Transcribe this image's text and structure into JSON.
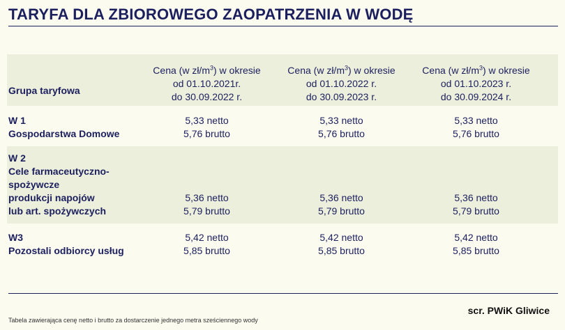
{
  "title": "TARYFA DLA ZBIOROWEGO ZAOPATRZENIA W WODĘ",
  "header": {
    "group_label": "Grupa taryfowa",
    "periods": [
      {
        "line1_pre": "Cena (w zł/m",
        "sup": "3",
        "line1_post": ") w okresie",
        "line2": "od 01.10.2021r.",
        "line3": "do 30.09.2022 r."
      },
      {
        "line1_pre": "Cena (w zł/m",
        "sup": "3",
        "line1_post": ") w okresie",
        "line2": "od 01.10.2022 r.",
        "line3": "do 30.09.2023 r."
      },
      {
        "line1_pre": "Cena (w zł/m",
        "sup": "3",
        "line1_post": ") w okresie",
        "line2": "od 01.10.2023 r.",
        "line3": "do 30.09.2024 r."
      }
    ]
  },
  "rows": [
    {
      "group_lines": [
        "W 1",
        "Gospodarstwa Domowe"
      ],
      "prices": [
        {
          "netto": "5,33 netto",
          "brutto": "5,76 brutto"
        },
        {
          "netto": "5,33 netto",
          "brutto": "5,76 brutto"
        },
        {
          "netto": "5,33 netto",
          "brutto": "5,76 brutto"
        }
      ]
    },
    {
      "group_lines": [
        "W 2",
        "Cele farmaceutyczno-",
        "spożywcze",
        "produkcji napojów",
        "lub art. spożywczych"
      ],
      "prices": [
        {
          "netto": "5,36 netto",
          "brutto": "5,79 brutto"
        },
        {
          "netto": "5,36 netto",
          "brutto": "5,79 brutto"
        },
        {
          "netto": "5,36 netto",
          "brutto": "5,79 brutto"
        }
      ]
    },
    {
      "group_lines": [
        "W3",
        "Pozostali odbiorcy usług"
      ],
      "prices": [
        {
          "netto": "5,42 netto",
          "brutto": "5,85 brutto"
        },
        {
          "netto": "5,42 netto",
          "brutto": "5,85 brutto"
        },
        {
          "netto": "5,42 netto",
          "brutto": "5,85 brutto"
        }
      ]
    }
  ],
  "source": "scr. PWiK Gliwice",
  "footnote": "Tabela zawierająca cenę netto i brutto za dostarczenie jednego metra sześciennego wody",
  "colors": {
    "navy": "#1c1f5e",
    "background": "#fbfbf0",
    "shaded_row": "#ecefdc"
  }
}
